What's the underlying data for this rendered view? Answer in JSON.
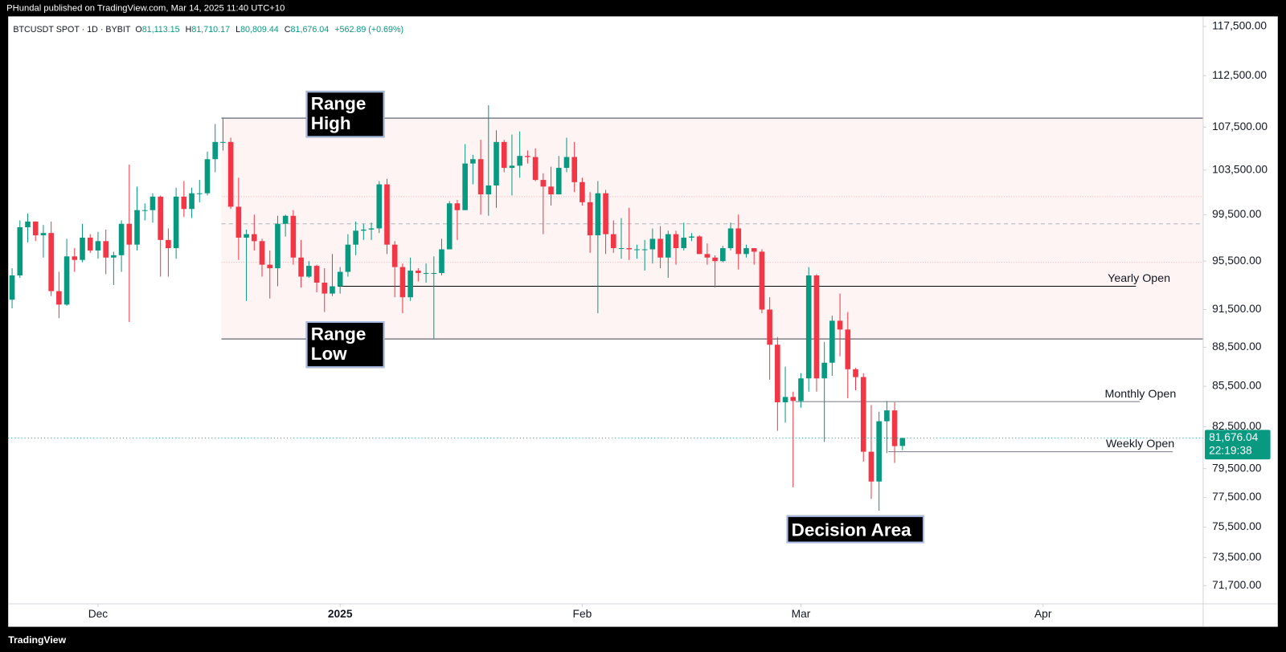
{
  "header": {
    "published": "PHundal published on TradingView.com, Mar 14, 2025 11:40 UTC+10",
    "brand": "TradingView"
  },
  "chart_data": {
    "type": "candlestick",
    "symbol": "BTCUSDT SPOT · 1D · BYBIT",
    "legend": [
      {
        "key": "O",
        "value": "81,113.15"
      },
      {
        "key": "H",
        "value": "81,710.17"
      },
      {
        "key": "L",
        "value": "80,809.44"
      },
      {
        "key": "C",
        "value": "81,676.04"
      }
    ],
    "change": "+562.89 (+0.69%)",
    "last_label": "81,676.04",
    "countdown": "22:19:38",
    "up_color": "#089981",
    "down_color": "#f23645",
    "log_scale": true,
    "grid": false,
    "xlim": [
      -0.5,
      152.5
    ],
    "xticks": [
      {
        "value": 11,
        "label": "Dec"
      },
      {
        "value": 42,
        "label": "2025"
      },
      {
        "value": 73,
        "label": "Feb"
      },
      {
        "value": 101,
        "label": "Mar"
      },
      {
        "value": 132,
        "label": "Apr"
      }
    ],
    "ylim": [
      70550,
      118550
    ],
    "yticks": [
      {
        "value": 117500,
        "label": "117,500.00"
      },
      {
        "value": 112500,
        "label": "112,500.00"
      },
      {
        "value": 107500,
        "label": "107,500.00"
      },
      {
        "value": 103500,
        "label": "103,500.00"
      },
      {
        "value": 99500,
        "label": "99,500.00"
      },
      {
        "value": 95500,
        "label": "95,500.00"
      },
      {
        "value": 91500,
        "label": "91,500.00"
      },
      {
        "value": 88500,
        "label": "88,500.00"
      },
      {
        "value": 85500,
        "label": "85,500.00"
      },
      {
        "value": 82500,
        "label": "82,500.00"
      },
      {
        "value": 79500,
        "label": "79,500.00"
      },
      {
        "value": 77500,
        "label": "77,500.00"
      },
      {
        "value": 75500,
        "label": "75,500.00"
      },
      {
        "value": 73500,
        "label": "73,500.00"
      },
      {
        "value": 71700,
        "label": "71,700.00"
      }
    ],
    "open": [
      92300,
      94300,
      98400,
      98900,
      97700,
      97900,
      93000,
      91900,
      95900,
      95600,
      97500,
      96400,
      97200,
      95800,
      96000,
      98700,
      96900,
      99900,
      99900,
      101100,
      97300,
      96600,
      101100,
      100000,
      101400,
      101400,
      104500,
      106100,
      106100,
      100200,
      97500,
      97800,
      97200,
      95200,
      94900,
      98700,
      99400,
      95800,
      94200,
      95100,
      93700,
      92800,
      93400,
      94600,
      96900,
      98100,
      98200,
      98300,
      102200,
      96900,
      95000,
      92500,
      94700,
      94500,
      94500,
      94500,
      96500,
      100500,
      99900,
      104100,
      104500,
      101300,
      102100,
      106100,
      103700,
      103900,
      104800,
      104700,
      102600,
      102000,
      101300,
      103700,
      104700,
      102400,
      100600,
      97700,
      101400,
      97800,
      96600,
      96600,
      96500,
      96500,
      96500,
      97400,
      95800,
      97800,
      96600,
      97500,
      97600,
      96100,
      95800,
      95500,
      96600,
      98300,
      96100,
      96600,
      96300,
      91500,
      88700,
      84300,
      84700,
      84400,
      86100,
      94300,
      86100,
      87300,
      90600,
      89900,
      86800,
      86200,
      80700,
      78600,
      82900,
      83700,
      81113.15
    ],
    "high": [
      94900,
      99000,
      99600,
      98900,
      98600,
      98900,
      94600,
      97400,
      96600,
      98700,
      97800,
      98000,
      98200,
      96300,
      99000,
      104000,
      102000,
      100500,
      101400,
      101200,
      98300,
      101900,
      102500,
      101900,
      102600,
      105200,
      107800,
      108400,
      106500,
      102800,
      98200,
      99500,
      97400,
      96400,
      99400,
      99500,
      99900,
      97300,
      95500,
      95200,
      94900,
      96100,
      95000,
      97800,
      98900,
      98700,
      98800,
      102500,
      102700,
      97200,
      95300,
      95800,
      94900,
      95300,
      95900,
      97400,
      100700,
      100800,
      105900,
      104900,
      106300,
      109600,
      107200,
      106300,
      106800,
      107100,
      105300,
      105500,
      103200,
      103800,
      104800,
      106500,
      106100,
      102800,
      101500,
      102500,
      101700,
      99000,
      99200,
      100100,
      96900,
      97300,
      98300,
      98500,
      98100,
      98100,
      98800,
      97900,
      97700,
      97000,
      96000,
      96800,
      98800,
      99500,
      96900,
      96600,
      96500,
      92500,
      89300,
      87000,
      85100,
      86500,
      95000,
      94400,
      88900,
      91000,
      92800,
      91300,
      86900,
      86500,
      84100,
      83600,
      84400,
      84300,
      81710.17
    ],
    "low": [
      91600,
      94100,
      97100,
      97200,
      95800,
      92600,
      90800,
      91800,
      94600,
      95400,
      96200,
      95700,
      94400,
      93500,
      94600,
      90500,
      96400,
      99000,
      98800,
      94200,
      94200,
      95700,
      99300,
      99200,
      100600,
      101200,
      103300,
      105300,
      100000,
      95600,
      92200,
      96400,
      94200,
      92400,
      93400,
      97600,
      95200,
      93300,
      94100,
      92900,
      91300,
      92600,
      92800,
      94200,
      96000,
      97300,
      97300,
      97900,
      96100,
      92500,
      91200,
      92200,
      93800,
      93700,
      89200,
      94300,
      96500,
      97300,
      99900,
      102200,
      99500,
      99400,
      100100,
      103300,
      101200,
      102800,
      104100,
      102500,
      97800,
      100300,
      101300,
      103300,
      101500,
      100300,
      96200,
      91200,
      96100,
      96200,
      95700,
      95600,
      95700,
      94700,
      95300,
      94900,
      94100,
      95200,
      96400,
      97200,
      96100,
      95200,
      93300,
      95400,
      96400,
      94800,
      95800,
      95200,
      91200,
      86000,
      82200,
      82800,
      78200,
      83900,
      85100,
      85100,
      81400,
      86300,
      87800,
      84600,
      85200,
      80000,
      77400,
      76600,
      80600,
      79900,
      80809.44
    ],
    "close": [
      94300,
      98400,
      98900,
      97700,
      97900,
      93000,
      91900,
      95900,
      95600,
      97500,
      96400,
      97200,
      95800,
      96000,
      98700,
      96900,
      99900,
      99900,
      101100,
      97300,
      96600,
      101100,
      100000,
      101400,
      101400,
      104500,
      106100,
      106100,
      100200,
      97500,
      97800,
      97200,
      95200,
      94900,
      98700,
      99400,
      95800,
      94200,
      95100,
      93700,
      92800,
      93400,
      94600,
      96900,
      98100,
      98200,
      98300,
      102200,
      96900,
      95000,
      92500,
      94700,
      94500,
      94500,
      94500,
      96500,
      100500,
      99900,
      104100,
      104500,
      101300,
      102100,
      106100,
      103700,
      103900,
      104800,
      104700,
      102600,
      102000,
      101300,
      103700,
      104700,
      102400,
      100600,
      97700,
      101400,
      97800,
      96600,
      96600,
      96500,
      96500,
      96500,
      97400,
      95800,
      97800,
      96600,
      97500,
      97600,
      96100,
      95800,
      95500,
      96600,
      98300,
      96100,
      96600,
      96300,
      91500,
      88700,
      84300,
      84700,
      84400,
      86100,
      94300,
      86100,
      87300,
      90600,
      89900,
      86800,
      86200,
      80700,
      78600,
      82900,
      83700,
      81100,
      81676.04
    ],
    "range": {
      "high": 108350,
      "low": 89150,
      "color": "#fdf4f3",
      "inner_levels": [
        101100,
        98700,
        95400
      ]
    },
    "levels": [
      {
        "name": "Yearly Open",
        "value": 93400
      },
      {
        "name": "Monthly Open",
        "value": 84350
      },
      {
        "name": "Weekly Open",
        "value": 80700
      }
    ],
    "annotations": [
      "Range High",
      "Range Low",
      "Decision Area"
    ]
  }
}
